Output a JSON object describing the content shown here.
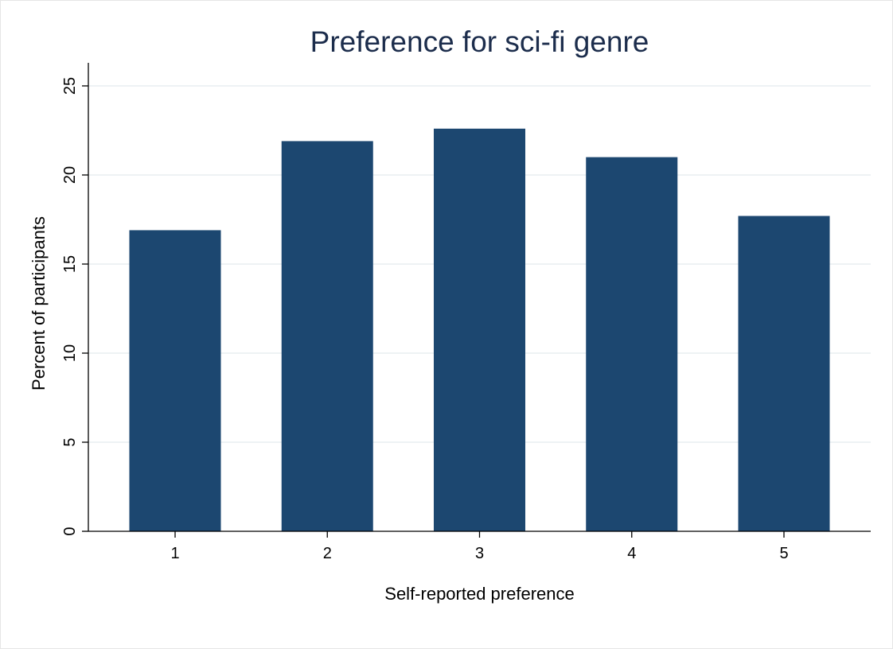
{
  "chart_data": {
    "type": "bar",
    "title": "Preference for sci-fi genre",
    "xlabel": "Self-reported preference",
    "ylabel": "Percent of participants",
    "categories": [
      "1",
      "2",
      "3",
      "4",
      "5"
    ],
    "values": [
      16.9,
      21.9,
      22.6,
      21.0,
      17.7
    ],
    "ylim": [
      0,
      25
    ],
    "yticks": [
      "0",
      "5",
      "10",
      "15",
      "20",
      "25"
    ],
    "grid": true,
    "legend": "none",
    "bar_color": "#1c4770",
    "title_color": "#1c2d4c",
    "grid_color": "#e8eef0"
  }
}
